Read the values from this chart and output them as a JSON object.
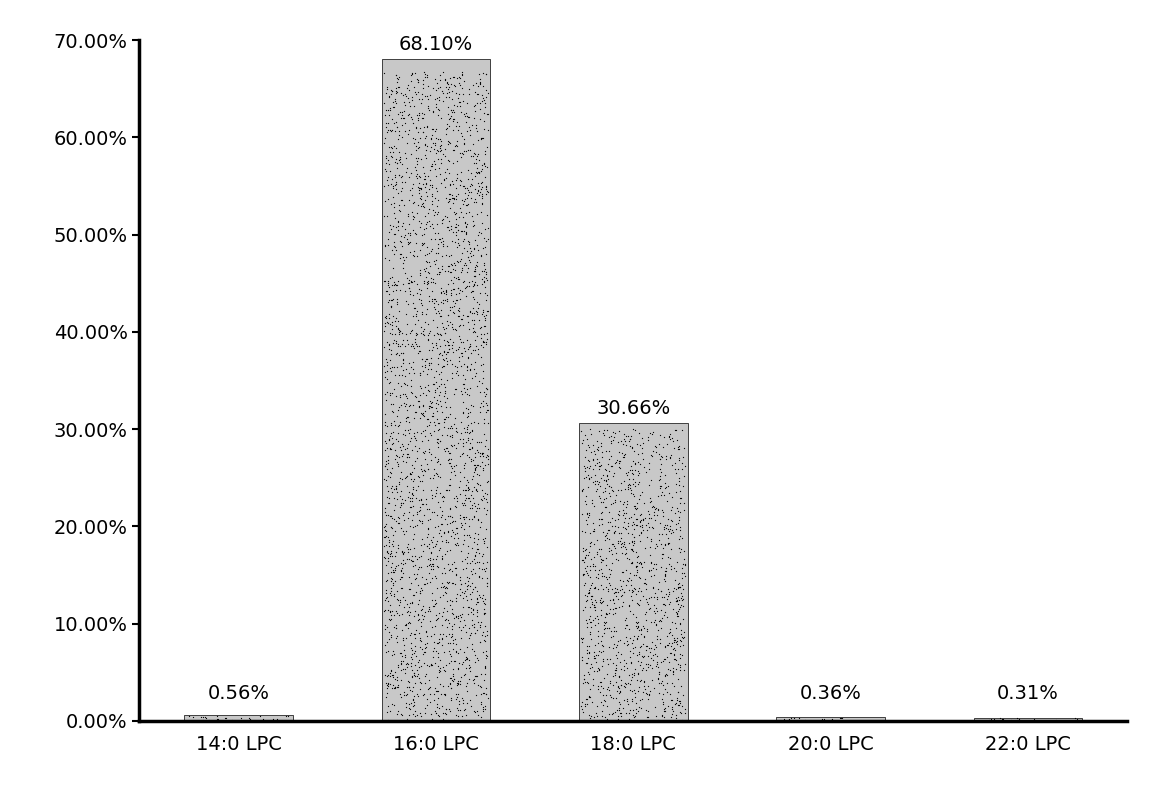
{
  "categories": [
    "14:0 LPC",
    "16:0 LPC",
    "18:0 LPC",
    "20:0 LPC",
    "22:0 LPC"
  ],
  "values": [
    0.0056,
    0.681,
    0.3066,
    0.0036,
    0.0031
  ],
  "labels": [
    "0.56%",
    "68.10%",
    "30.66%",
    "0.36%",
    "0.31%"
  ],
  "background_color": "#ffffff",
  "ylim": [
    0,
    0.7
  ],
  "yticks": [
    0.0,
    0.1,
    0.2,
    0.3,
    0.4,
    0.5,
    0.6,
    0.7
  ],
  "ytick_labels": [
    "0.00%",
    "10.00%",
    "20.00%",
    "30.00%",
    "40.00%",
    "50.00%",
    "60.00%",
    "70.00%"
  ],
  "label_fontsize": 14,
  "tick_fontsize": 14,
  "bar_width": 0.55
}
